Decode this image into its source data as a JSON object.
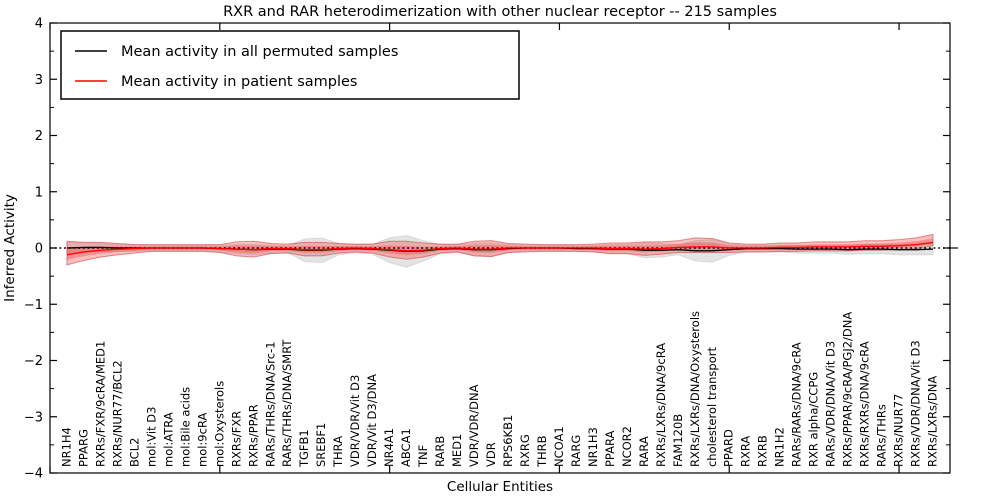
{
  "chart_data": {
    "type": "line",
    "title": "RXR and RAR heterodimerization with other nuclear receptor -- 215 samples",
    "xlabel": "Cellular Entities",
    "ylabel": "Inferred Activity",
    "ylim": [
      -4,
      4
    ],
    "xlim": [
      0,
      53
    ],
    "yticks": [
      -4,
      -3,
      -2,
      -1,
      0,
      1,
      2,
      3,
      4
    ],
    "ytick_minor_step": 0.5,
    "xticks": [
      0,
      10,
      20,
      30,
      40,
      50
    ],
    "grid": false,
    "zero_line": {
      "style": "dotted",
      "color": "#000000",
      "y": 0
    },
    "legend_position": "upper left",
    "categories": [
      "NR1H4",
      "PPARG",
      "RXRs/FXR/9cRA/MED1",
      "RXRs/NUR77/BCL2",
      "BCL2",
      "mol:Vit D3",
      "mol:ATRA",
      "mol:Bile acids",
      "mol:9cRA",
      "mol:Oxysterols",
      "RXRs/FXR",
      "RXRs/PPAR",
      "RARs/THRs/DNA/Src-1",
      "RARs/THRs/DNA/SMRT",
      "TGFB1",
      "SREBF1",
      "THRA",
      "VDR/VDR/Vit D3",
      "VDR/Vit D3/DNA",
      "NR4A1",
      "ABCA1",
      "TNF",
      "RARB",
      "MED1",
      "VDR/VDR/DNA",
      "VDR",
      "RPS6KB1",
      "RXRG",
      "THRB",
      "NCOA1",
      "RARG",
      "NR1H3",
      "PPARA",
      "NCOR2",
      "RARA",
      "RXRs/LXRs/DNA/9cRA",
      "FAM120B",
      "RXRs/LXRs/DNA/Oxysterols",
      "cholesterol transport",
      "PPARD",
      "RXRA",
      "RXRB",
      "NR1H2",
      "RARs/RARs/DNA/9cRA",
      "RXR alpha/CCPG",
      "RARs/VDR/DNA/Vit D3",
      "RXRs/PPAR/9cRA/PGJ2/DNA",
      "RXRs/RXRs/DNA/9cRA",
      "RARs/THRs",
      "RXRs/NUR77",
      "RXRs/VDR/DNA/Vit D3",
      "RXRs/LXRs/DNA"
    ],
    "series": [
      {
        "name": "Mean activity in all permuted samples",
        "color": "#000000",
        "values": [
          0.0,
          0.01,
          0.01,
          0.0,
          0.0,
          0.0,
          0.0,
          0.0,
          0.0,
          -0.01,
          -0.02,
          -0.03,
          -0.02,
          -0.02,
          -0.04,
          -0.04,
          -0.02,
          -0.01,
          -0.02,
          -0.04,
          -0.06,
          -0.05,
          -0.02,
          -0.01,
          -0.03,
          -0.03,
          -0.01,
          0.0,
          0.0,
          0.0,
          -0.01,
          -0.01,
          -0.02,
          -0.02,
          -0.04,
          -0.04,
          -0.03,
          -0.05,
          -0.05,
          -0.03,
          -0.01,
          -0.01,
          -0.01,
          -0.02,
          -0.02,
          -0.02,
          -0.03,
          -0.02,
          -0.02,
          -0.03,
          -0.03,
          -0.02
        ],
        "band_halfwidth_above": [
          0.1,
          0.08,
          0.07,
          0.06,
          0.06,
          0.05,
          0.05,
          0.05,
          0.05,
          0.06,
          0.08,
          0.09,
          0.07,
          0.06,
          0.2,
          0.22,
          0.1,
          0.07,
          0.09,
          0.22,
          0.28,
          0.18,
          0.08,
          0.07,
          0.11,
          0.12,
          0.07,
          0.06,
          0.05,
          0.05,
          0.05,
          0.06,
          0.08,
          0.08,
          0.13,
          0.12,
          0.09,
          0.18,
          0.2,
          0.1,
          0.06,
          0.06,
          0.06,
          0.07,
          0.07,
          0.07,
          0.08,
          0.08,
          0.08,
          0.09,
          0.09,
          0.1
        ],
        "band_halfwidth_below": [
          0.1,
          0.08,
          0.07,
          0.06,
          0.06,
          0.05,
          0.05,
          0.05,
          0.05,
          0.06,
          0.08,
          0.09,
          0.07,
          0.06,
          0.2,
          0.22,
          0.1,
          0.07,
          0.09,
          0.22,
          0.28,
          0.18,
          0.08,
          0.07,
          0.11,
          0.12,
          0.07,
          0.06,
          0.05,
          0.05,
          0.05,
          0.06,
          0.08,
          0.08,
          0.13,
          0.12,
          0.09,
          0.18,
          0.2,
          0.1,
          0.06,
          0.06,
          0.06,
          0.07,
          0.07,
          0.07,
          0.08,
          0.08,
          0.08,
          0.09,
          0.09,
          0.1
        ],
        "band_color": "#dddddd"
      },
      {
        "name": "Mean activity in patient samples",
        "color": "#ff0000",
        "values": [
          -0.12,
          -0.07,
          -0.04,
          -0.02,
          -0.01,
          0.0,
          0.0,
          0.0,
          0.0,
          -0.01,
          -0.02,
          -0.03,
          -0.01,
          -0.01,
          -0.03,
          -0.03,
          -0.01,
          0.0,
          -0.01,
          -0.03,
          -0.05,
          -0.04,
          -0.01,
          0.0,
          -0.02,
          -0.02,
          0.0,
          0.0,
          0.0,
          0.0,
          0.0,
          0.0,
          -0.01,
          -0.01,
          -0.02,
          -0.01,
          0.01,
          0.02,
          0.02,
          0.0,
          0.0,
          0.0,
          0.01,
          0.01,
          0.02,
          0.02,
          0.02,
          0.03,
          0.03,
          0.04,
          0.06,
          0.1
        ],
        "band_halfwidth_above": [
          0.24,
          0.17,
          0.14,
          0.1,
          0.07,
          0.06,
          0.06,
          0.06,
          0.06,
          0.07,
          0.13,
          0.15,
          0.09,
          0.08,
          0.13,
          0.13,
          0.09,
          0.07,
          0.08,
          0.15,
          0.17,
          0.13,
          0.08,
          0.07,
          0.14,
          0.15,
          0.08,
          0.07,
          0.06,
          0.06,
          0.06,
          0.07,
          0.1,
          0.1,
          0.13,
          0.12,
          0.12,
          0.16,
          0.15,
          0.09,
          0.07,
          0.07,
          0.08,
          0.08,
          0.09,
          0.09,
          0.09,
          0.1,
          0.1,
          0.11,
          0.12,
          0.14
        ],
        "band_halfwidth_below": [
          0.18,
          0.15,
          0.12,
          0.1,
          0.08,
          0.06,
          0.06,
          0.06,
          0.06,
          0.07,
          0.12,
          0.13,
          0.09,
          0.08,
          0.11,
          0.11,
          0.08,
          0.07,
          0.08,
          0.13,
          0.15,
          0.12,
          0.08,
          0.07,
          0.12,
          0.13,
          0.08,
          0.07,
          0.06,
          0.06,
          0.06,
          0.07,
          0.09,
          0.09,
          0.11,
          0.1,
          0.09,
          0.1,
          0.1,
          0.08,
          0.07,
          0.07,
          0.07,
          0.07,
          0.07,
          0.07,
          0.07,
          0.07,
          0.07,
          0.07,
          0.07,
          0.06
        ],
        "band_color": "#f04040"
      }
    ]
  },
  "colors": {
    "frame": "#000000",
    "background": "#ffffff",
    "permuted_line": "#000000",
    "patient_line": "#ff0000",
    "permuted_band": "#dddddd",
    "patient_band": "#f04040"
  }
}
